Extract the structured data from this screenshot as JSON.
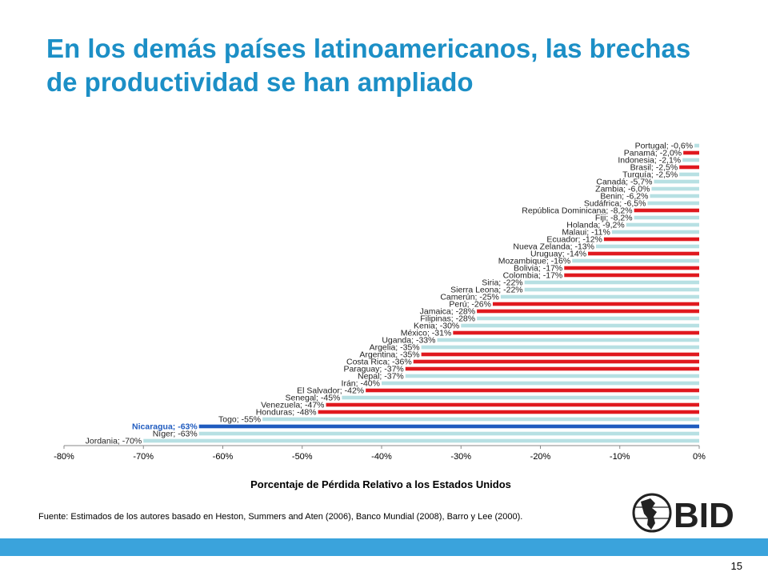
{
  "slide": {
    "title": "En los demás países latinoamericanos, las brechas de productividad se han ampliado",
    "source": "Fuente:  Estimados de los autores basado en Heston, Summers and Aten (2006), Banco Mundial (2008), Barro y Lee (2000).",
    "page_number": "15",
    "logo_text": "BID"
  },
  "colors": {
    "title": "#1c8fc6",
    "other_bar": "#b7e0e3",
    "latam_bar": "#e0191f",
    "highlight_bar": "#1f5bbf",
    "highlight_label": "#1f5bbf",
    "footer_bar": "#3aa3dc"
  },
  "chart_data": {
    "type": "bar",
    "orientation": "horizontal",
    "xlabel": "Porcentaje de Pérdida Relativo a los Estados Unidos",
    "xlim": [
      -80,
      0
    ],
    "xticks": [
      -80,
      -70,
      -60,
      -50,
      -40,
      -30,
      -20,
      -10,
      0
    ],
    "xtick_labels": [
      "-80%",
      "-70%",
      "-60%",
      "-50%",
      "-40%",
      "-30%",
      "-20%",
      "-10%",
      "0%"
    ],
    "groups": {
      "other": "light blue bars",
      "latam": "red bars",
      "highlight": "blue bar"
    },
    "bars": [
      {
        "country": "Portugal",
        "label": "Portugal; -0,6%",
        "value": -0.6,
        "group": "other"
      },
      {
        "country": "Panamá",
        "label": "Panamá; -2,0%",
        "value": -2.0,
        "group": "latam"
      },
      {
        "country": "Indonesia",
        "label": "Indonesia; -2,1%",
        "value": -2.1,
        "group": "other"
      },
      {
        "country": "Brasil",
        "label": "Brasil; -2,5%",
        "value": -2.5,
        "group": "latam"
      },
      {
        "country": "Turquía",
        "label": "Turquía; -2,5%",
        "value": -2.5,
        "group": "other"
      },
      {
        "country": "Canadá",
        "label": "Canadá; -5,7%",
        "value": -5.7,
        "group": "other"
      },
      {
        "country": "Zambia",
        "label": "Zambia; -6,0%",
        "value": -6.0,
        "group": "other"
      },
      {
        "country": "Benin",
        "label": "Benin; -6,2%",
        "value": -6.2,
        "group": "other"
      },
      {
        "country": "Sudáfrica",
        "label": "Sudáfrica; -6,5%",
        "value": -6.5,
        "group": "other"
      },
      {
        "country": "República Dominicana",
        "label": "República Dominicana; -8,2%",
        "value": -8.2,
        "group": "latam"
      },
      {
        "country": "Fiji",
        "label": "Fiji; -8,2%",
        "value": -8.2,
        "group": "other"
      },
      {
        "country": "Holanda",
        "label": "Holanda; -9,2%",
        "value": -9.2,
        "group": "other"
      },
      {
        "country": "Malaui",
        "label": "Malaui; -11%",
        "value": -11,
        "group": "other"
      },
      {
        "country": "Ecuador",
        "label": "Ecuador; -12%",
        "value": -12,
        "group": "latam"
      },
      {
        "country": "Nueva Zelanda",
        "label": "Nueva Zelanda; -13%",
        "value": -13,
        "group": "other"
      },
      {
        "country": "Uruguay",
        "label": "Uruguay; -14%",
        "value": -14,
        "group": "latam"
      },
      {
        "country": "Mozambique",
        "label": "Mozambique; -16%",
        "value": -16,
        "group": "other"
      },
      {
        "country": "Bolivia",
        "label": "Bolivia; -17%",
        "value": -17,
        "group": "latam"
      },
      {
        "country": "Colombia",
        "label": "Colombia; -17%",
        "value": -17,
        "group": "latam"
      },
      {
        "country": "Siria",
        "label": "Siria; -22%",
        "value": -22,
        "group": "other"
      },
      {
        "country": "Sierra Leona",
        "label": "Sierra Leona; -22%",
        "value": -22,
        "group": "other"
      },
      {
        "country": "Camerún",
        "label": "Camerún; -25%",
        "value": -25,
        "group": "other"
      },
      {
        "country": "Perú",
        "label": "Perú; -26%",
        "value": -26,
        "group": "latam"
      },
      {
        "country": "Jamaica",
        "label": "Jamaica; -28%",
        "value": -28,
        "group": "latam"
      },
      {
        "country": "Filipinas",
        "label": "Filipinas; -28%",
        "value": -28,
        "group": "other"
      },
      {
        "country": "Kenia",
        "label": "Kenia; -30%",
        "value": -30,
        "group": "other"
      },
      {
        "country": "México",
        "label": "México; -31%",
        "value": -31,
        "group": "latam"
      },
      {
        "country": "Uganda",
        "label": "Uganda; -33%",
        "value": -33,
        "group": "other"
      },
      {
        "country": "Argelia",
        "label": "Argelia; -35%",
        "value": -35,
        "group": "other"
      },
      {
        "country": "Argentina",
        "label": "Argentina; -35%",
        "value": -35,
        "group": "latam"
      },
      {
        "country": "Costa Rica",
        "label": "Costa Rica; -36%",
        "value": -36,
        "group": "latam"
      },
      {
        "country": "Paraguay",
        "label": "Paraguay; -37%",
        "value": -37,
        "group": "latam"
      },
      {
        "country": "Nepal",
        "label": "Nepal; -37%",
        "value": -37,
        "group": "other"
      },
      {
        "country": "Irán",
        "label": "Irán; -40%",
        "value": -40,
        "group": "other"
      },
      {
        "country": "El Salvador",
        "label": "El Salvador; -42%",
        "value": -42,
        "group": "latam"
      },
      {
        "country": "Senegal",
        "label": "Senegal; -45%",
        "value": -45,
        "group": "other"
      },
      {
        "country": "Venezuela",
        "label": "Venezuela; -47%",
        "value": -47,
        "group": "latam"
      },
      {
        "country": "Honduras",
        "label": "Honduras; -48%",
        "value": -48,
        "group": "latam"
      },
      {
        "country": "Togo",
        "label": "Togo; -55%",
        "value": -55,
        "group": "other"
      },
      {
        "country": "Nicaragua",
        "label": "Nicaragua; -63%",
        "value": -63,
        "group": "highlight"
      },
      {
        "country": "Níger",
        "label": "Níger; -63%",
        "value": -63,
        "group": "other"
      },
      {
        "country": "Jordania",
        "label": "Jordania; -70%",
        "value": -70,
        "group": "other"
      }
    ]
  }
}
